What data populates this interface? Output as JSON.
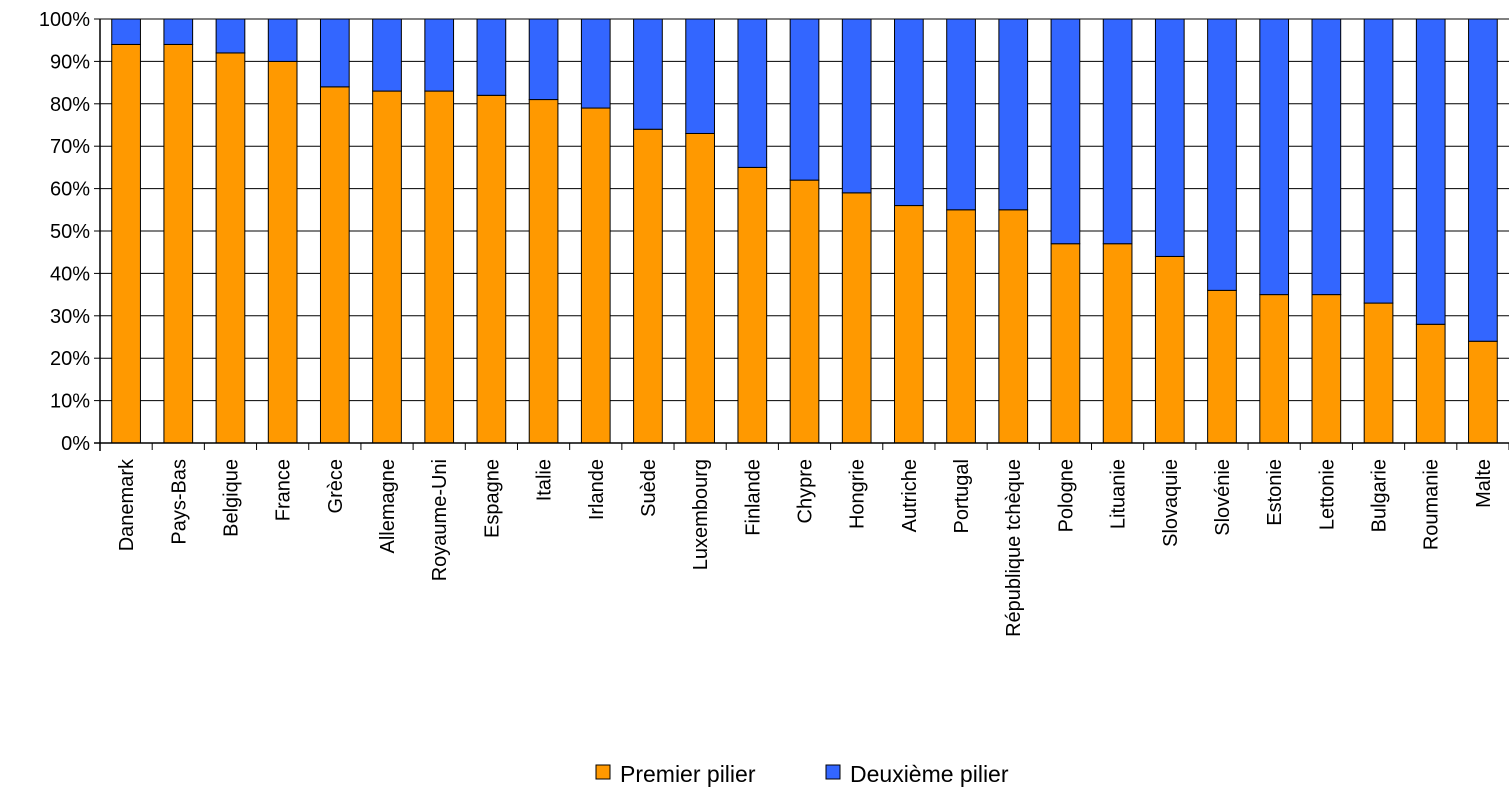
{
  "chart_data": {
    "type": "bar",
    "stacked": true,
    "percent_stacked": true,
    "categories": [
      "Danemark",
      "Pays-Bas",
      "Belgique",
      "France",
      "Grèce",
      "Allemagne",
      "Royaume-Uni",
      "Espagne",
      "Italie",
      "Irlande",
      "Suède",
      "Luxembourg",
      "Finlande",
      "Chypre",
      "Hongrie",
      "Autriche",
      "Portugal",
      "République tchèque",
      "Pologne",
      "Lituanie",
      "Slovaquie",
      "Slovénie",
      "Estonie",
      "Lettonie",
      "Bulgarie",
      "Roumanie",
      "Malte"
    ],
    "series": [
      {
        "name": "Premier pilier",
        "color": "#FF9900",
        "values": [
          94,
          94,
          92,
          90,
          84,
          83,
          83,
          82,
          81,
          79,
          74,
          73,
          65,
          62,
          59,
          56,
          55,
          55,
          47,
          47,
          44,
          36,
          35,
          35,
          33,
          28,
          24
        ]
      },
      {
        "name": "Deuxième pilier",
        "color": "#3366FF",
        "values": [
          6,
          6,
          8,
          10,
          16,
          17,
          17,
          18,
          19,
          21,
          26,
          27,
          35,
          38,
          41,
          44,
          45,
          45,
          53,
          53,
          56,
          64,
          65,
          65,
          67,
          72,
          76
        ]
      }
    ],
    "y_ticks": [
      "0%",
      "10%",
      "20%",
      "30%",
      "40%",
      "50%",
      "60%",
      "70%",
      "80%",
      "90%",
      "100%"
    ],
    "ylim": [
      0,
      100
    ],
    "grid": true,
    "legend_position": "bottom",
    "title": "",
    "xlabel": "",
    "ylabel": ""
  }
}
